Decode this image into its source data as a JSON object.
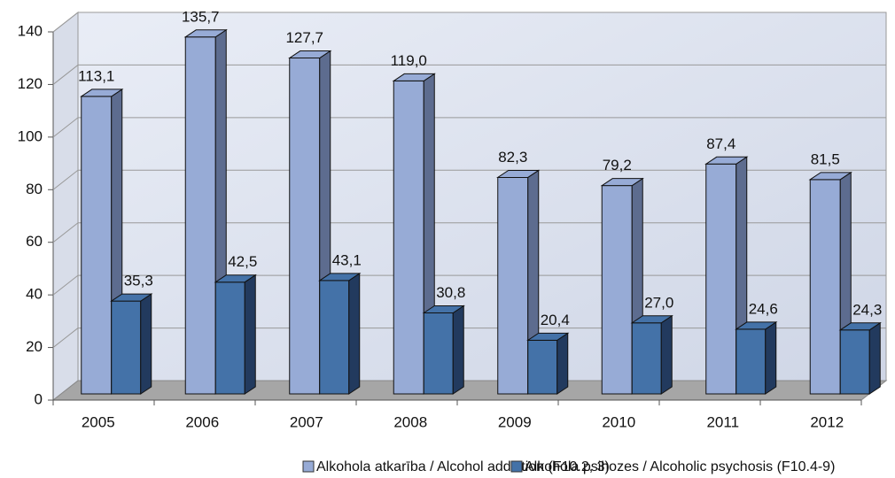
{
  "chart_data": {
    "type": "bar",
    "categories": [
      "2005",
      "2006",
      "2007",
      "2008",
      "2009",
      "2010",
      "2011",
      "2012"
    ],
    "series": [
      {
        "name": "Alkohola atkarība / Alcohol addiction (F10.2, 3)",
        "color": "#97abd6",
        "side_color": "#5d6c8f",
        "values": [
          113.1,
          135.7,
          127.7,
          119.0,
          82.3,
          79.2,
          87.4,
          81.5
        ],
        "value_labels": [
          "113,1",
          "135,7",
          "127,7",
          "119,0",
          "82,3",
          "79,2",
          "87,4",
          "81,5"
        ]
      },
      {
        "name": "Alkohola psihozes / Alcoholic psychosis (F10.4-9)",
        "color": "#4472a8",
        "side_color": "#223a5e",
        "values": [
          35.3,
          42.5,
          43.1,
          30.8,
          20.4,
          27.0,
          24.6,
          24.3
        ],
        "value_labels": [
          "35,3",
          "42,5",
          "43,1",
          "30,8",
          "20,4",
          "27,0",
          "24,6",
          "24,3"
        ]
      }
    ],
    "ylim": [
      0,
      140
    ],
    "yticks": [
      0,
      20,
      40,
      60,
      80,
      100,
      120,
      140
    ],
    "grid": true,
    "legend": "bottom"
  }
}
